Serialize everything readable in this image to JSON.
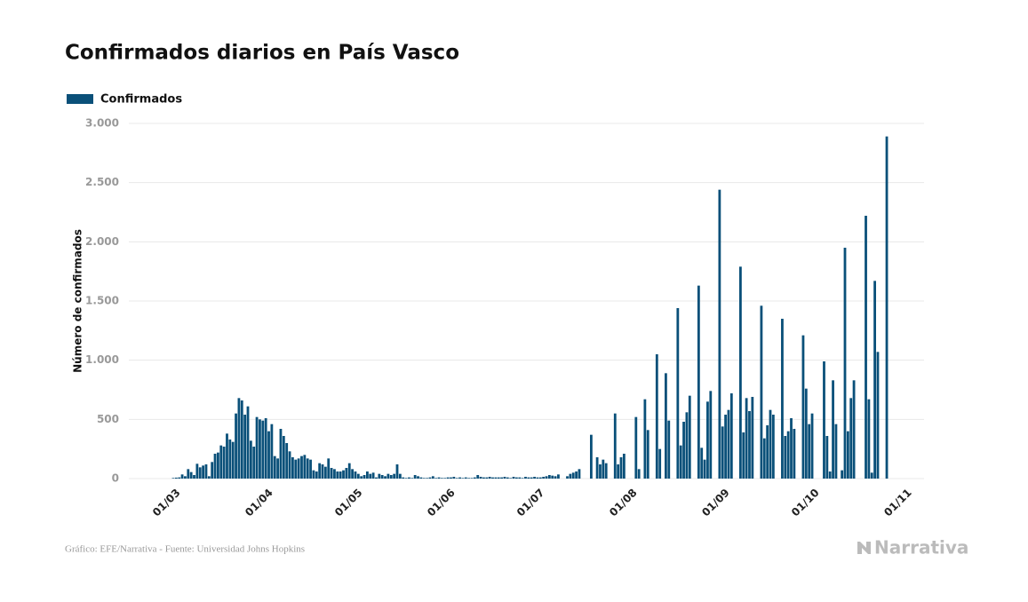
{
  "chart_data": {
    "type": "bar",
    "title": "Confirmados diarios en País Vasco",
    "ylabel": "Número de confirmados",
    "source": "Gráfico: EFE/Narrativa - Fuente: Universidad Johns Hopkins",
    "brand": "Narrativa",
    "grid": true,
    "legend": "top-left",
    "ylim": [
      0,
      3000
    ],
    "yticks": [
      0,
      500,
      {
        "value": 1000,
        "label": "1.000"
      },
      {
        "value": 1500,
        "label": "1.500"
      },
      {
        "value": 2000,
        "label": "2.000"
      },
      {
        "value": 2500,
        "label": "2.500"
      },
      {
        "value": 3000,
        "label": "3.000"
      }
    ],
    "categories": [
      "01/03",
      null,
      null,
      null,
      null,
      null,
      null,
      null,
      null,
      null,
      null,
      null,
      null,
      null,
      null,
      null,
      null,
      null,
      null,
      null,
      null,
      null,
      null,
      null,
      null,
      null,
      null,
      null,
      null,
      null,
      null,
      "01/04",
      null,
      null,
      null,
      null,
      null,
      null,
      null,
      null,
      null,
      null,
      null,
      null,
      null,
      null,
      null,
      null,
      null,
      null,
      null,
      null,
      null,
      null,
      null,
      null,
      null,
      null,
      null,
      null,
      null,
      "01/05",
      null,
      null,
      null,
      null,
      null,
      null,
      null,
      null,
      null,
      null,
      null,
      null,
      null,
      null,
      null,
      null,
      null,
      null,
      null,
      null,
      null,
      null,
      null,
      null,
      null,
      null,
      null,
      null,
      null,
      null,
      "01/06",
      null,
      null,
      null,
      null,
      null,
      null,
      null,
      null,
      null,
      null,
      null,
      null,
      null,
      null,
      null,
      null,
      null,
      null,
      null,
      null,
      null,
      null,
      null,
      null,
      null,
      null,
      null,
      null,
      null,
      "01/07",
      null,
      null,
      null,
      null,
      null,
      null,
      null,
      null,
      null,
      null,
      null,
      null,
      null,
      null,
      null,
      null,
      null,
      null,
      null,
      null,
      null,
      null,
      null,
      null,
      null,
      null,
      null,
      null,
      null,
      null,
      "01/08",
      null,
      null,
      null,
      null,
      null,
      null,
      null,
      null,
      null,
      null,
      null,
      null,
      null,
      null,
      null,
      null,
      null,
      null,
      null,
      null,
      null,
      null,
      null,
      null,
      null,
      null,
      null,
      null,
      null,
      null,
      "01/09",
      null,
      null,
      null,
      null,
      null,
      null,
      null,
      null,
      null,
      null,
      null,
      null,
      null,
      null,
      null,
      null,
      null,
      null,
      null,
      null,
      null,
      null,
      null,
      null,
      null,
      null,
      null,
      null,
      null,
      "01/10",
      null,
      null,
      null,
      null,
      null,
      null,
      null,
      null,
      null,
      null,
      null,
      null,
      null,
      null,
      null,
      null,
      null,
      null,
      null,
      null,
      null,
      null,
      null,
      null,
      null,
      null,
      null,
      null,
      null,
      null,
      "01/11"
    ],
    "series": [
      {
        "name": "Confirmados",
        "color": "#0a5079",
        "values": [
          5,
          8,
          10,
          35,
          20,
          80,
          55,
          30,
          125,
          95,
          110,
          120,
          20,
          140,
          210,
          220,
          280,
          270,
          380,
          330,
          310,
          550,
          680,
          660,
          540,
          610,
          320,
          270,
          520,
          500,
          490,
          510,
          400,
          460,
          190,
          170,
          420,
          360,
          300,
          230,
          180,
          160,
          170,
          190,
          200,
          170,
          160,
          70,
          60,
          130,
          120,
          100,
          170,
          90,
          80,
          60,
          60,
          70,
          90,
          130,
          80,
          60,
          40,
          20,
          30,
          60,
          40,
          50,
          10,
          40,
          30,
          20,
          40,
          30,
          40,
          120,
          40,
          10,
          5,
          10,
          5,
          30,
          20,
          10,
          5,
          5,
          10,
          20,
          5,
          10,
          5,
          5,
          10,
          10,
          15,
          5,
          10,
          5,
          10,
          5,
          5,
          10,
          30,
          15,
          10,
          10,
          15,
          10,
          10,
          10,
          10,
          15,
          10,
          5,
          15,
          10,
          10,
          5,
          15,
          10,
          10,
          15,
          10,
          10,
          15,
          20,
          30,
          25,
          20,
          35,
          0,
          0,
          20,
          40,
          50,
          60,
          80,
          0,
          0,
          0,
          370,
          0,
          180,
          120,
          160,
          130,
          0,
          0,
          550,
          120,
          180,
          210,
          0,
          0,
          0,
          520,
          80,
          0,
          670,
          410,
          0,
          0,
          1050,
          250,
          0,
          890,
          490,
          0,
          0,
          1440,
          280,
          480,
          560,
          700,
          0,
          0,
          1630,
          260,
          160,
          650,
          740,
          0,
          0,
          2440,
          440,
          540,
          580,
          720,
          0,
          0,
          1790,
          390,
          680,
          570,
          690,
          0,
          0,
          1460,
          340,
          450,
          580,
          540,
          0,
          0,
          1350,
          360,
          400,
          510,
          420,
          0,
          0,
          1210,
          760,
          460,
          550,
          0,
          0,
          0,
          990,
          360,
          60,
          830,
          460,
          0,
          70,
          1950,
          400,
          680,
          830,
          0,
          0,
          0,
          2220,
          670,
          50,
          1670,
          1070,
          0,
          0,
          2890,
          0,
          0,
          0,
          0,
          0,
          0
        ]
      }
    ]
  }
}
